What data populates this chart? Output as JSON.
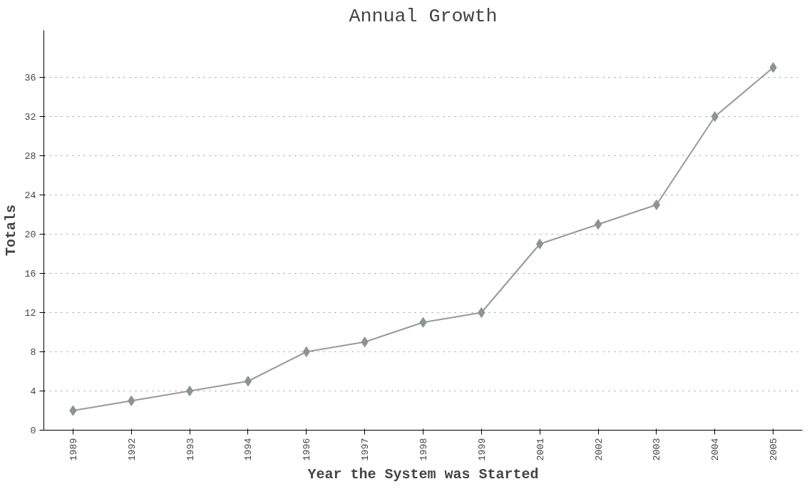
{
  "chart_data": {
    "type": "line",
    "title": "Annual Growth",
    "xlabel": "Year the System was Started",
    "ylabel": "Totals",
    "categories": [
      "1989",
      "1992",
      "1993",
      "1994",
      "1996",
      "1997",
      "1998",
      "1999",
      "2001",
      "2002",
      "2003",
      "2004",
      "2005"
    ],
    "series": [
      {
        "color": "#8a9494",
        "values": [
          2,
          3,
          4,
          5,
          8,
          9,
          11,
          12,
          19,
          21,
          23,
          32,
          37
        ]
      }
    ],
    "ylim": [
      0,
      40.8
    ],
    "yticks": [
      0,
      4,
      8,
      12,
      16,
      20,
      24,
      28,
      32,
      36
    ],
    "grid": "y",
    "marker": "diamond",
    "line_style": "solid"
  }
}
